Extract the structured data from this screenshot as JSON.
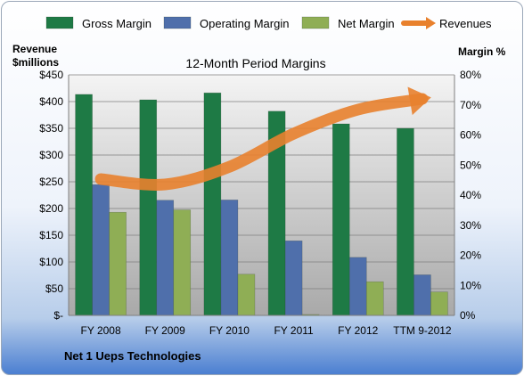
{
  "chart_data": {
    "type": "bar",
    "title": "12-Month Period Margins",
    "company": "Net 1 Ueps Technologies",
    "ylabel_left": [
      "Revenue",
      "$millions"
    ],
    "ylabel_right": "Margin %",
    "categories": [
      "FY 2008",
      "FY 2009",
      "FY 2010",
      "FY 2011",
      "FY 2012",
      "TTM 9-2012"
    ],
    "left_ticks": [
      "$-",
      "$50",
      "$100",
      "$150",
      "$200",
      "$250",
      "$300",
      "$350",
      "$400",
      "$450"
    ],
    "right_ticks": [
      "0%",
      "10%",
      "20%",
      "30%",
      "40%",
      "50%",
      "60%",
      "70%",
      "80%"
    ],
    "ylim_left": [
      0,
      450
    ],
    "ylim_right": [
      0,
      80
    ],
    "grid": true,
    "legend_position": "top",
    "series": [
      {
        "name": "Gross Margin",
        "axis": "right",
        "color": "#1e7a45",
        "values": [
          73.5,
          71.7,
          74,
          67.9,
          63.7,
          62.2
        ]
      },
      {
        "name": "Operating Margin",
        "axis": "right",
        "color": "#4f6fab",
        "values": [
          43.5,
          38.3,
          38.4,
          24.8,
          19.3,
          13.5
        ]
      },
      {
        "name": "Net Margin",
        "axis": "right",
        "color": "#8fae55",
        "values": [
          34.3,
          35.1,
          13.7,
          0.3,
          11.2,
          7.8
        ]
      },
      {
        "name": "Revenues",
        "axis": "left",
        "type": "line",
        "color": "#e8812d",
        "values": [
          255,
          245,
          278,
          340,
          385,
          405
        ]
      }
    ]
  }
}
